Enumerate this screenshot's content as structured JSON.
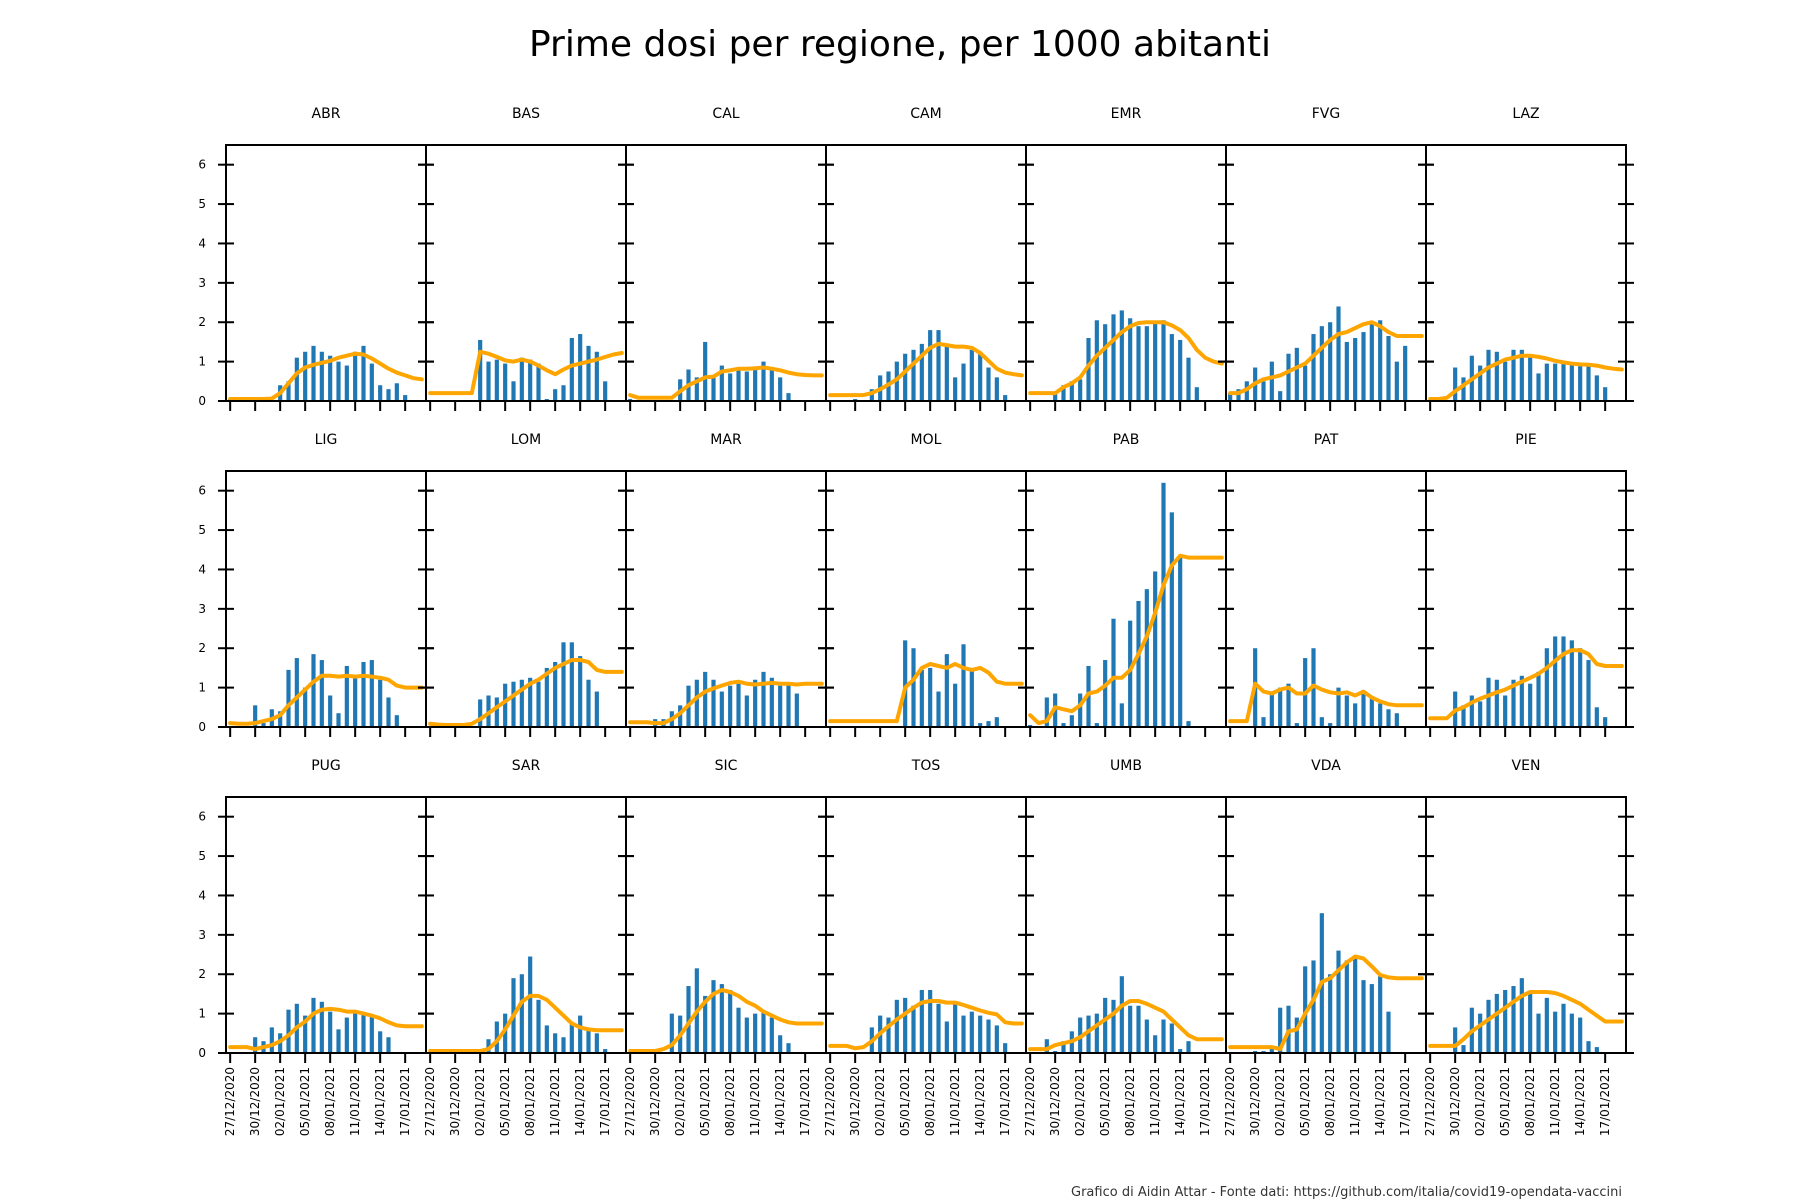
{
  "chart_data": {
    "type": "bar",
    "title": "Prime dosi per regione, per 1000 abitanti",
    "credit": "Grafico di Aidin Attar - Fonte dati: https://github.com/italia/covid19-opendata-vaccini",
    "ylim": [
      0,
      6.5
    ],
    "yticks": [
      0,
      1,
      2,
      3,
      4,
      5,
      6
    ],
    "xtick_labels": [
      "27/12/2020",
      "30/12/2020",
      "02/01/2021",
      "05/01/2021",
      "08/01/2021",
      "11/01/2021",
      "14/01/2021",
      "17/01/2021"
    ],
    "x": [
      "27/12/2020",
      "28/12/2020",
      "29/12/2020",
      "30/12/2020",
      "31/12/2020",
      "01/01/2021",
      "02/01/2021",
      "03/01/2021",
      "04/01/2021",
      "05/01/2021",
      "06/01/2021",
      "07/01/2021",
      "08/01/2021",
      "09/01/2021",
      "10/01/2021",
      "11/01/2021",
      "12/01/2021",
      "13/01/2021",
      "14/01/2021",
      "15/01/2021",
      "16/01/2021",
      "17/01/2021",
      "18/01/2021",
      "19/01/2021"
    ],
    "colors": {
      "bars": "#1f77b4",
      "line": "#ffa500"
    },
    "panels": [
      {
        "name": "ABR",
        "bars": [
          0.05,
          0,
          0,
          0.05,
          0,
          0,
          0.4,
          0.5,
          1.1,
          1.25,
          1.4,
          1.25,
          1.15,
          1.0,
          0.9,
          1.25,
          1.4,
          0.95,
          0.4,
          0.3,
          0.45,
          0.15,
          0,
          0
        ],
        "line": [
          0.05,
          0.05,
          0.05,
          0.05,
          0.05,
          0.06,
          0.2,
          0.45,
          0.7,
          0.85,
          0.92,
          0.97,
          1.02,
          1.1,
          1.15,
          1.2,
          1.18,
          1.08,
          0.95,
          0.82,
          0.72,
          0.65,
          0.58,
          0.55
        ]
      },
      {
        "name": "BAS",
        "bars": [
          0,
          0,
          0,
          0,
          0,
          0,
          1.55,
          1.0,
          1.05,
          0.95,
          0.5,
          1.1,
          1.05,
          0.95,
          0.05,
          0.3,
          0.4,
          1.6,
          1.7,
          1.4,
          1.25,
          0.5,
          0,
          0
        ],
        "line": [
          0.2,
          0.2,
          0.2,
          0.2,
          0.2,
          0.2,
          1.25,
          1.2,
          1.12,
          1.03,
          1.0,
          1.05,
          1.0,
          0.9,
          0.78,
          0.68,
          0.8,
          0.9,
          0.95,
          1.0,
          1.05,
          1.12,
          1.18,
          1.22
        ]
      },
      {
        "name": "CAL",
        "bars": [
          0.05,
          0,
          0,
          0,
          0,
          0,
          0.55,
          0.8,
          0.6,
          1.5,
          0.65,
          0.9,
          0.7,
          0.8,
          0.75,
          0.8,
          1.0,
          0.8,
          0.6,
          0.2,
          0,
          0,
          0,
          0
        ],
        "line": [
          0.15,
          0.08,
          0.08,
          0.08,
          0.08,
          0.08,
          0.25,
          0.4,
          0.5,
          0.6,
          0.62,
          0.75,
          0.78,
          0.82,
          0.82,
          0.83,
          0.85,
          0.82,
          0.78,
          0.72,
          0.68,
          0.66,
          0.65,
          0.65
        ]
      },
      {
        "name": "CAM",
        "bars": [
          0,
          0,
          0,
          0.05,
          0,
          0.3,
          0.65,
          0.75,
          1.0,
          1.2,
          1.3,
          1.45,
          1.8,
          1.8,
          1.4,
          0.6,
          0.95,
          1.3,
          1.2,
          0.85,
          0.6,
          0.15,
          0,
          0
        ],
        "line": [
          0.15,
          0.15,
          0.15,
          0.15,
          0.15,
          0.2,
          0.3,
          0.42,
          0.55,
          0.75,
          0.95,
          1.15,
          1.35,
          1.45,
          1.42,
          1.38,
          1.38,
          1.35,
          1.22,
          1.02,
          0.82,
          0.72,
          0.68,
          0.65
        ]
      },
      {
        "name": "EMR",
        "bars": [
          0,
          0,
          0,
          0.2,
          0.4,
          0.5,
          0.55,
          1.6,
          2.05,
          1.95,
          2.2,
          2.3,
          2.1,
          1.9,
          1.9,
          2.0,
          2.05,
          1.7,
          1.55,
          1.1,
          0.35,
          0,
          0,
          0
        ],
        "line": [
          0.2,
          0.2,
          0.2,
          0.2,
          0.35,
          0.45,
          0.6,
          0.9,
          1.15,
          1.35,
          1.55,
          1.75,
          1.9,
          1.98,
          2.0,
          2.0,
          2.0,
          1.92,
          1.8,
          1.6,
          1.3,
          1.1,
          1.0,
          0.95
        ]
      },
      {
        "name": "FVG",
        "bars": [
          0.2,
          0.3,
          0.5,
          0.85,
          0.5,
          1.0,
          0.25,
          1.2,
          1.35,
          0.9,
          1.7,
          1.9,
          2.0,
          2.4,
          1.5,
          1.6,
          1.75,
          2.0,
          2.05,
          1.65,
          1.0,
          1.4,
          0,
          0
        ],
        "line": [
          0.2,
          0.2,
          0.3,
          0.45,
          0.55,
          0.6,
          0.65,
          0.75,
          0.85,
          0.95,
          1.15,
          1.35,
          1.55,
          1.7,
          1.75,
          1.85,
          1.95,
          2.0,
          1.9,
          1.75,
          1.65,
          1.65,
          1.65,
          1.65
        ]
      },
      {
        "name": "LAZ",
        "bars": [
          0,
          0,
          0,
          0.85,
          0.6,
          1.15,
          0.9,
          1.3,
          1.25,
          1.0,
          1.3,
          1.3,
          1.15,
          0.7,
          0.95,
          0.95,
          1.0,
          0.95,
          0.9,
          0.95,
          0.65,
          0.35,
          0,
          0
        ],
        "line": [
          0.05,
          0.05,
          0.08,
          0.25,
          0.4,
          0.55,
          0.7,
          0.85,
          0.95,
          1.05,
          1.1,
          1.15,
          1.15,
          1.12,
          1.08,
          1.02,
          0.98,
          0.95,
          0.93,
          0.92,
          0.9,
          0.85,
          0.82,
          0.8
        ]
      },
      {
        "name": "LIG",
        "bars": [
          0,
          0,
          0,
          0.55,
          0.1,
          0.45,
          0.4,
          1.45,
          1.75,
          1.0,
          1.85,
          1.7,
          0.8,
          0.35,
          1.55,
          1.3,
          1.65,
          1.7,
          1.2,
          0.75,
          0.3,
          0,
          0,
          0
        ],
        "line": [
          0.1,
          0.08,
          0.08,
          0.1,
          0.15,
          0.2,
          0.3,
          0.55,
          0.75,
          0.95,
          1.15,
          1.3,
          1.3,
          1.28,
          1.3,
          1.28,
          1.3,
          1.28,
          1.25,
          1.2,
          1.05,
          1.0,
          1.0,
          1.0
        ]
      },
      {
        "name": "LOM",
        "bars": [
          0,
          0,
          0,
          0,
          0,
          0,
          0.7,
          0.8,
          0.75,
          1.1,
          1.15,
          1.2,
          1.25,
          1.15,
          1.5,
          1.65,
          2.15,
          2.15,
          1.8,
          1.2,
          0.9,
          0,
          0,
          0
        ],
        "line": [
          0.08,
          0.06,
          0.05,
          0.05,
          0.05,
          0.08,
          0.2,
          0.35,
          0.5,
          0.65,
          0.8,
          0.95,
          1.1,
          1.2,
          1.35,
          1.5,
          1.6,
          1.7,
          1.7,
          1.65,
          1.45,
          1.4,
          1.4,
          1.4
        ]
      },
      {
        "name": "MAR",
        "bars": [
          0,
          0,
          0,
          0.2,
          0.2,
          0.4,
          0.55,
          1.05,
          1.2,
          1.4,
          1.2,
          0.9,
          1.05,
          1.1,
          0.8,
          1.2,
          1.4,
          1.25,
          1.05,
          1.1,
          0.85,
          0,
          0,
          0
        ],
        "line": [
          0.12,
          0.12,
          0.12,
          0.1,
          0.1,
          0.2,
          0.35,
          0.55,
          0.75,
          0.9,
          0.98,
          1.05,
          1.12,
          1.15,
          1.1,
          1.08,
          1.1,
          1.12,
          1.1,
          1.1,
          1.08,
          1.1,
          1.1,
          1.1
        ]
      },
      {
        "name": "MOL",
        "bars": [
          0,
          0,
          0,
          0,
          0,
          0,
          0,
          0,
          0,
          2.2,
          2.0,
          1.45,
          1.5,
          0.9,
          1.85,
          1.1,
          2.1,
          1.45,
          0.1,
          0.15,
          0.25,
          0,
          0,
          0
        ],
        "line": [
          0.15,
          0.15,
          0.15,
          0.15,
          0.15,
          0.15,
          0.15,
          0.15,
          0.15,
          1.0,
          1.2,
          1.5,
          1.6,
          1.55,
          1.5,
          1.6,
          1.5,
          1.45,
          1.5,
          1.38,
          1.15,
          1.1,
          1.1,
          1.1
        ]
      },
      {
        "name": "PAB",
        "bars": [
          0.05,
          0,
          0.75,
          0.85,
          0.1,
          0.3,
          0.85,
          1.55,
          0.1,
          1.7,
          2.75,
          0.6,
          2.7,
          3.2,
          3.5,
          3.95,
          6.2,
          5.45,
          4.35,
          0.15,
          0,
          0,
          0,
          0
        ],
        "line": [
          0.3,
          0.1,
          0.15,
          0.5,
          0.45,
          0.4,
          0.55,
          0.85,
          0.9,
          1.05,
          1.25,
          1.25,
          1.45,
          1.85,
          2.3,
          2.9,
          3.6,
          4.1,
          4.35,
          4.3,
          4.3,
          4.3,
          4.3,
          4.3
        ]
      },
      {
        "name": "PAT",
        "bars": [
          0,
          0,
          0,
          2.0,
          0.25,
          0.85,
          1.0,
          1.1,
          0.1,
          1.75,
          2.0,
          0.25,
          0.1,
          1.0,
          0.8,
          0.6,
          0.85,
          0.75,
          0.6,
          0.45,
          0.35,
          0,
          0,
          0
        ],
        "line": [
          0.15,
          0.15,
          0.15,
          1.1,
          0.9,
          0.85,
          0.95,
          1.0,
          0.85,
          0.85,
          1.05,
          0.95,
          0.88,
          0.85,
          0.88,
          0.8,
          0.9,
          0.75,
          0.65,
          0.58,
          0.55,
          0.55,
          0.55,
          0.55
        ]
      },
      {
        "name": "PIE",
        "bars": [
          0,
          0,
          0,
          0.9,
          0.55,
          0.8,
          0.65,
          1.25,
          1.2,
          0.8,
          1.2,
          1.3,
          1.1,
          1.4,
          2.0,
          2.3,
          2.3,
          2.2,
          2.0,
          1.7,
          0.5,
          0.25,
          0,
          0
        ],
        "line": [
          0.22,
          0.22,
          0.22,
          0.42,
          0.5,
          0.62,
          0.72,
          0.8,
          0.88,
          0.95,
          1.05,
          1.15,
          1.25,
          1.35,
          1.5,
          1.68,
          1.85,
          1.95,
          1.95,
          1.85,
          1.6,
          1.55,
          1.55,
          1.55
        ]
      },
      {
        "name": "PUG",
        "bars": [
          0,
          0,
          0,
          0.4,
          0.3,
          0.65,
          0.5,
          1.1,
          1.25,
          0.95,
          1.4,
          1.3,
          1.05,
          0.6,
          0.9,
          1.05,
          1.0,
          0.95,
          0.55,
          0.4,
          0,
          0,
          0,
          0
        ],
        "line": [
          0.15,
          0.15,
          0.15,
          0.1,
          0.15,
          0.2,
          0.3,
          0.45,
          0.65,
          0.8,
          1.0,
          1.1,
          1.12,
          1.1,
          1.05,
          1.05,
          1.0,
          0.95,
          0.88,
          0.78,
          0.7,
          0.68,
          0.68,
          0.68
        ]
      },
      {
        "name": "SAR",
        "bars": [
          0,
          0,
          0,
          0,
          0,
          0,
          0,
          0.35,
          0.8,
          1.0,
          1.9,
          2.0,
          2.45,
          1.35,
          0.7,
          0.5,
          0.4,
          0.75,
          0.95,
          0.6,
          0.5,
          0.1,
          0,
          0
        ],
        "line": [
          0.05,
          0.05,
          0.05,
          0.05,
          0.05,
          0.05,
          0.05,
          0.1,
          0.3,
          0.6,
          0.95,
          1.3,
          1.45,
          1.45,
          1.35,
          1.15,
          0.95,
          0.75,
          0.65,
          0.6,
          0.58,
          0.58,
          0.58,
          0.58
        ]
      },
      {
        "name": "SIC",
        "bars": [
          0,
          0,
          0,
          0.1,
          0,
          1.0,
          0.95,
          1.7,
          2.15,
          1.45,
          1.85,
          1.75,
          1.6,
          1.15,
          0.9,
          1.0,
          1.05,
          0.9,
          0.45,
          0.25,
          0,
          0,
          0,
          0
        ],
        "line": [
          0.05,
          0.05,
          0.05,
          0.05,
          0.1,
          0.2,
          0.45,
          0.75,
          1.05,
          1.3,
          1.5,
          1.6,
          1.55,
          1.45,
          1.3,
          1.2,
          1.05,
          0.95,
          0.85,
          0.78,
          0.75,
          0.75,
          0.75,
          0.75
        ]
      },
      {
        "name": "TOS",
        "bars": [
          0,
          0,
          0,
          0,
          0,
          0.65,
          0.95,
          0.9,
          1.35,
          1.4,
          1.2,
          1.6,
          1.6,
          1.25,
          0.8,
          1.3,
          0.95,
          1.05,
          0.95,
          0.85,
          0.7,
          0.25,
          0,
          0
        ],
        "line": [
          0.18,
          0.18,
          0.18,
          0.12,
          0.15,
          0.3,
          0.5,
          0.68,
          0.85,
          1.0,
          1.15,
          1.28,
          1.32,
          1.32,
          1.28,
          1.28,
          1.22,
          1.15,
          1.08,
          1.02,
          0.98,
          0.78,
          0.75,
          0.75
        ]
      },
      {
        "name": "UMB",
        "bars": [
          0,
          0,
          0.35,
          0.05,
          0.3,
          0.55,
          0.9,
          0.95,
          1.0,
          1.4,
          1.35,
          1.95,
          1.2,
          1.2,
          0.85,
          0.45,
          0.85,
          0.75,
          0.1,
          0.3,
          0,
          0,
          0,
          0
        ],
        "line": [
          0.1,
          0.1,
          0.1,
          0.2,
          0.25,
          0.3,
          0.4,
          0.55,
          0.7,
          0.85,
          1.0,
          1.2,
          1.32,
          1.32,
          1.25,
          1.15,
          1.05,
          0.85,
          0.65,
          0.45,
          0.35,
          0.35,
          0.35,
          0.35
        ]
      },
      {
        "name": "VDA",
        "bars": [
          0,
          0,
          0,
          0.05,
          0.05,
          0.1,
          1.15,
          1.2,
          0.9,
          2.2,
          2.35,
          3.55,
          2.0,
          2.6,
          2.35,
          2.45,
          1.85,
          1.75,
          1.95,
          1.05,
          0,
          0,
          0,
          0
        ],
        "line": [
          0.15,
          0.15,
          0.15,
          0.15,
          0.15,
          0.15,
          0.1,
          0.55,
          0.6,
          1.0,
          1.35,
          1.8,
          1.9,
          2.1,
          2.3,
          2.45,
          2.4,
          2.2,
          1.98,
          1.92,
          1.9,
          1.9,
          1.9,
          1.9
        ]
      },
      {
        "name": "VEN",
        "bars": [
          0,
          0,
          0,
          0.65,
          0.2,
          1.15,
          1.0,
          1.35,
          1.5,
          1.6,
          1.7,
          1.9,
          1.55,
          1.0,
          1.4,
          1.05,
          1.25,
          1.0,
          0.9,
          0.3,
          0.15,
          0,
          0,
          0
        ],
        "line": [
          0.18,
          0.18,
          0.18,
          0.18,
          0.35,
          0.55,
          0.7,
          0.85,
          1.0,
          1.15,
          1.3,
          1.45,
          1.55,
          1.55,
          1.55,
          1.52,
          1.45,
          1.35,
          1.25,
          1.1,
          0.95,
          0.8,
          0.8,
          0.8
        ]
      }
    ]
  }
}
